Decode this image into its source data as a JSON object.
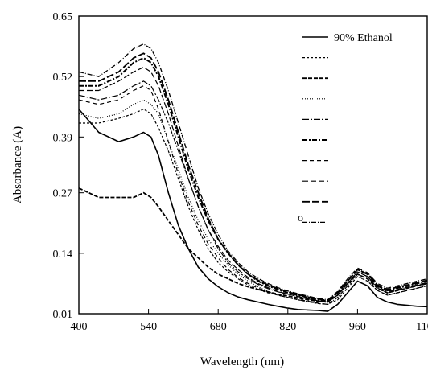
{
  "chart_data": {
    "type": "line",
    "title": "",
    "xlabel": "Wavelength (nm)",
    "ylabel": "Absorbance  (A)",
    "xlim": [
      400,
      1100
    ],
    "ylim": [
      0.01,
      0.65
    ],
    "x_ticks": [
      "400",
      "540",
      "680",
      "820",
      "960",
      "1100"
    ],
    "y_ticks": [
      "0.01",
      "0.14",
      "0.27",
      "0.39",
      "0.52",
      "0.65"
    ],
    "x_tick_values": [
      400,
      540,
      680,
      820,
      960,
      1100
    ],
    "y_tick_values": [
      0.01,
      0.14,
      0.27,
      0.39,
      0.52,
      0.65
    ],
    "grid": false,
    "legend_position": "top-right",
    "legend_extra_text": "o",
    "x": [
      400,
      440,
      480,
      510,
      530,
      545,
      560,
      580,
      600,
      620,
      640,
      660,
      680,
      700,
      720,
      740,
      760,
      780,
      800,
      820,
      840,
      860,
      880,
      900,
      920,
      940,
      960,
      980,
      1000,
      1020,
      1040,
      1060,
      1080,
      1100
    ],
    "series": [
      {
        "name": "90% Ethanol",
        "dash": "",
        "width": 1.6,
        "values": [
          0.45,
          0.4,
          0.38,
          0.39,
          0.4,
          0.39,
          0.35,
          0.27,
          0.2,
          0.15,
          0.11,
          0.085,
          0.068,
          0.055,
          0.046,
          0.04,
          0.035,
          0.03,
          0.026,
          0.022,
          0.019,
          0.018,
          0.017,
          0.015,
          0.03,
          0.055,
          0.08,
          0.07,
          0.045,
          0.035,
          0.03,
          0.028,
          0.026,
          0.025
        ]
      },
      {
        "dash": "3,2",
        "width": 1.2,
        "values": [
          0.42,
          0.42,
          0.43,
          0.44,
          0.45,
          0.44,
          0.41,
          0.36,
          0.3,
          0.24,
          0.19,
          0.15,
          0.12,
          0.1,
          0.085,
          0.072,
          0.062,
          0.055,
          0.05,
          0.045,
          0.04,
          0.036,
          0.032,
          0.03,
          0.04,
          0.065,
          0.09,
          0.08,
          0.06,
          0.05,
          0.055,
          0.06,
          0.065,
          0.07
        ]
      },
      {
        "dash": "5,2",
        "width": 1.8,
        "values": [
          0.28,
          0.26,
          0.26,
          0.26,
          0.27,
          0.26,
          0.24,
          0.21,
          0.18,
          0.15,
          0.13,
          0.11,
          0.095,
          0.085,
          0.075,
          0.068,
          0.062,
          0.057,
          0.052,
          0.048,
          0.044,
          0.04,
          0.037,
          0.035,
          0.05,
          0.075,
          0.095,
          0.085,
          0.065,
          0.055,
          0.06,
          0.065,
          0.07,
          0.075
        ]
      },
      {
        "dash": "1,2",
        "width": 1.2,
        "values": [
          0.44,
          0.43,
          0.44,
          0.46,
          0.47,
          0.46,
          0.44,
          0.38,
          0.32,
          0.26,
          0.21,
          0.17,
          0.14,
          0.115,
          0.095,
          0.08,
          0.068,
          0.058,
          0.05,
          0.045,
          0.04,
          0.036,
          0.032,
          0.03,
          0.045,
          0.07,
          0.09,
          0.08,
          0.06,
          0.05,
          0.055,
          0.06,
          0.065,
          0.07
        ]
      },
      {
        "dash": "8,2,2,2",
        "width": 1.2,
        "values": [
          0.48,
          0.47,
          0.48,
          0.5,
          0.51,
          0.5,
          0.47,
          0.42,
          0.36,
          0.3,
          0.24,
          0.19,
          0.15,
          0.12,
          0.1,
          0.085,
          0.073,
          0.064,
          0.057,
          0.052,
          0.047,
          0.042,
          0.038,
          0.035,
          0.05,
          0.075,
          0.1,
          0.09,
          0.065,
          0.055,
          0.06,
          0.065,
          0.07,
          0.075
        ]
      },
      {
        "dash": "6,2,2,2",
        "width": 2.0,
        "values": [
          0.5,
          0.5,
          0.52,
          0.55,
          0.56,
          0.55,
          0.52,
          0.46,
          0.39,
          0.32,
          0.26,
          0.21,
          0.17,
          0.14,
          0.115,
          0.095,
          0.08,
          0.07,
          0.062,
          0.055,
          0.05,
          0.045,
          0.04,
          0.037,
          0.055,
          0.08,
          0.105,
          0.095,
          0.07,
          0.06,
          0.065,
          0.07,
          0.075,
          0.08
        ]
      },
      {
        "dash": "5,4",
        "width": 1.2,
        "values": [
          0.47,
          0.46,
          0.47,
          0.49,
          0.5,
          0.49,
          0.45,
          0.38,
          0.31,
          0.25,
          0.2,
          0.16,
          0.13,
          0.105,
          0.088,
          0.075,
          0.065,
          0.057,
          0.05,
          0.045,
          0.041,
          0.037,
          0.033,
          0.03,
          0.045,
          0.07,
          0.095,
          0.085,
          0.06,
          0.05,
          0.055,
          0.06,
          0.065,
          0.07
        ]
      },
      {
        "dash": "7,3",
        "width": 1.2,
        "values": [
          0.49,
          0.49,
          0.51,
          0.53,
          0.54,
          0.53,
          0.5,
          0.44,
          0.37,
          0.3,
          0.24,
          0.19,
          0.155,
          0.125,
          0.105,
          0.088,
          0.075,
          0.066,
          0.058,
          0.052,
          0.047,
          0.042,
          0.038,
          0.035,
          0.05,
          0.075,
          0.1,
          0.09,
          0.068,
          0.058,
          0.062,
          0.067,
          0.072,
          0.077
        ]
      },
      {
        "dash": "9,3",
        "width": 1.8,
        "values": [
          0.51,
          0.51,
          0.53,
          0.56,
          0.57,
          0.56,
          0.53,
          0.47,
          0.4,
          0.33,
          0.27,
          0.215,
          0.17,
          0.14,
          0.115,
          0.095,
          0.082,
          0.072,
          0.064,
          0.057,
          0.051,
          0.046,
          0.042,
          0.038,
          0.055,
          0.08,
          0.105,
          0.095,
          0.072,
          0.062,
          0.067,
          0.072,
          0.077,
          0.082
        ]
      },
      {
        "dash": "6,2,1,2",
        "width": 1.3,
        "values": [
          0.53,
          0.52,
          0.55,
          0.58,
          0.59,
          0.58,
          0.55,
          0.49,
          0.42,
          0.35,
          0.28,
          0.225,
          0.18,
          0.145,
          0.12,
          0.1,
          0.086,
          0.075,
          0.066,
          0.059,
          0.053,
          0.048,
          0.043,
          0.04,
          0.058,
          0.085,
          0.108,
          0.098,
          0.075,
          0.065,
          0.07,
          0.075,
          0.08,
          0.085
        ]
      }
    ]
  }
}
